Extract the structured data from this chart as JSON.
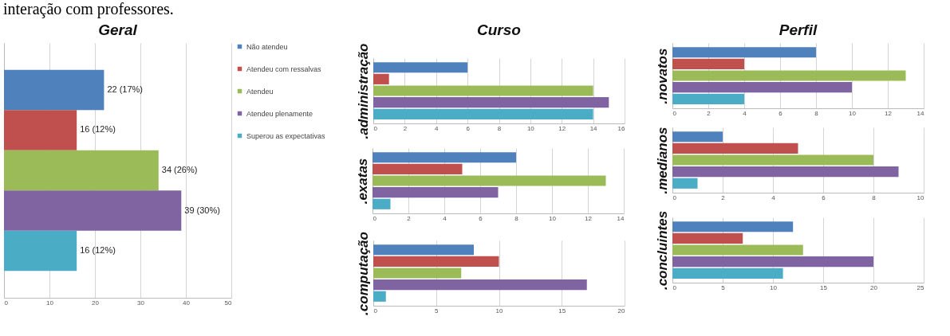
{
  "chart_data": [
    {
      "type": "bar",
      "orientation": "horizontal",
      "title": "Geral",
      "annotations": [
        "interação com professores."
      ],
      "categories": [
        null
      ],
      "series": [
        {
          "name": "Não atendeu",
          "color": "#4f81bd",
          "values": [
            22
          ],
          "value_labels": [
            "22 (17%)"
          ]
        },
        {
          "name": "Atendeu com ressalvas",
          "color": "#c0504d",
          "values": [
            16
          ],
          "value_labels": [
            "16 (12%)"
          ]
        },
        {
          "name": "Atendeu",
          "color": "#9bbb59",
          "values": [
            34
          ],
          "value_labels": [
            "34 (26%)"
          ]
        },
        {
          "name": "Atendeu plenamente",
          "color": "#8064a2",
          "values": [
            39
          ],
          "value_labels": [
            "39 (30%)"
          ]
        },
        {
          "name": "Superou as expectativas",
          "color": "#4bacc6",
          "values": [
            16
          ],
          "value_labels": [
            "16 (12%)"
          ]
        }
      ],
      "xlim": [
        0,
        50
      ],
      "xticks": [
        0,
        10,
        20,
        30,
        40,
        50
      ],
      "grid": "x",
      "legend": "right",
      "tick_labels": "x"
    },
    {
      "type": "bar",
      "orientation": "horizontal",
      "title": "Curso",
      "ylabel": ".administração",
      "categories": [
        null,
        null,
        null,
        null,
        null
      ],
      "values": [
        6,
        1,
        14,
        15,
        14
      ],
      "colors": [
        "#4f81bd",
        "#c0504d",
        "#9bbb59",
        "#8064a2",
        "#4bacc6"
      ],
      "xlim": [
        0,
        16
      ],
      "xticks": [
        0,
        2,
        4,
        6,
        8,
        10,
        12,
        14,
        16
      ],
      "grid": "x",
      "tick_labels": "x"
    },
    {
      "type": "bar",
      "orientation": "horizontal",
      "ylabel": ".exatas",
      "categories": [
        null,
        null,
        null,
        null,
        null
      ],
      "values": [
        8,
        5,
        13,
        7,
        1
      ],
      "colors": [
        "#4f81bd",
        "#c0504d",
        "#9bbb59",
        "#8064a2",
        "#4bacc6"
      ],
      "xlim": [
        0,
        14
      ],
      "xticks": [
        0,
        2,
        4,
        6,
        8,
        10,
        12,
        14
      ],
      "grid": "x",
      "tick_labels": "x"
    },
    {
      "type": "bar",
      "orientation": "horizontal",
      "ylabel": ".computação",
      "categories": [
        null,
        null,
        null,
        null,
        null
      ],
      "values": [
        8,
        10,
        7,
        17,
        1
      ],
      "colors": [
        "#4f81bd",
        "#c0504d",
        "#9bbb59",
        "#8064a2",
        "#4bacc6"
      ],
      "xlim": [
        0,
        20
      ],
      "xticks": [
        0,
        5,
        10,
        15,
        20
      ],
      "grid": "x",
      "tick_labels": "x"
    },
    {
      "type": "bar",
      "orientation": "horizontal",
      "title": "Perfil",
      "ylabel": ".novatos",
      "categories": [
        null,
        null,
        null,
        null,
        null
      ],
      "values": [
        8,
        4,
        13,
        10,
        4
      ],
      "colors": [
        "#4f81bd",
        "#c0504d",
        "#9bbb59",
        "#8064a2",
        "#4bacc6"
      ],
      "xlim": [
        0,
        14
      ],
      "xticks": [
        0,
        2,
        4,
        6,
        8,
        10,
        12,
        14
      ],
      "grid": "x",
      "tick_labels": "x"
    },
    {
      "type": "bar",
      "orientation": "horizontal",
      "ylabel": ".medianos",
      "categories": [
        null,
        null,
        null,
        null,
        null
      ],
      "values": [
        2,
        5,
        8,
        9,
        1
      ],
      "colors": [
        "#4f81bd",
        "#c0504d",
        "#9bbb59",
        "#8064a2",
        "#4bacc6"
      ],
      "xlim": [
        0,
        10
      ],
      "xticks": [
        0,
        2,
        4,
        6,
        8,
        10
      ],
      "grid": "x",
      "tick_labels": "x"
    },
    {
      "type": "bar",
      "orientation": "horizontal",
      "ylabel": ".concluintes",
      "categories": [
        null,
        null,
        null,
        null,
        null
      ],
      "values": [
        12,
        7,
        13,
        20,
        11
      ],
      "colors": [
        "#4f81bd",
        "#c0504d",
        "#9bbb59",
        "#8064a2",
        "#4bacc6"
      ],
      "xlim": [
        0,
        25
      ],
      "xticks": [
        0,
        5,
        10,
        15,
        20,
        25
      ],
      "grid": "x",
      "tick_labels": "x"
    }
  ]
}
